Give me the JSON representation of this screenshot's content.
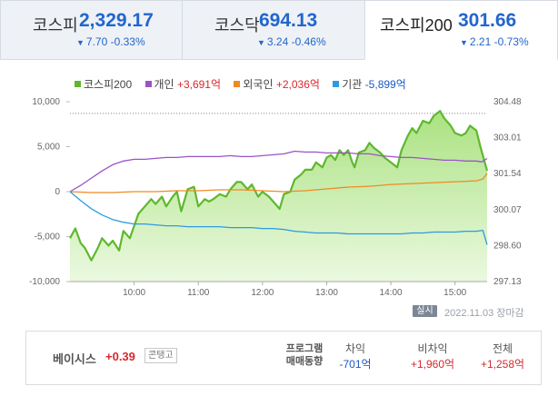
{
  "tabs": [
    {
      "name": "코스피",
      "value": "2,329.17",
      "change": "7.70",
      "rate": "-0.33%",
      "active": false
    },
    {
      "name": "코스닥",
      "value": "694.13",
      "change": "3.24",
      "rate": "-0.46%",
      "active": false
    },
    {
      "name": "코스피200",
      "value": "301.66",
      "change": "2.21",
      "rate": "-0.73%",
      "active": true
    }
  ],
  "legend": [
    {
      "name": "코스피200",
      "value": "",
      "color": "#5eb82e"
    },
    {
      "name": "개인",
      "value": "+3,691억",
      "color": "#9a53c8"
    },
    {
      "name": "외국인",
      "value": "+2,036억",
      "color": "#f08a24"
    },
    {
      "name": "기관",
      "value": "-5,899억",
      "color": "#2e9ae0"
    }
  ],
  "chart_data": {
    "type": "line",
    "x_ticks": [
      "10:00",
      "11:00",
      "12:00",
      "13:00",
      "14:00",
      "15:00"
    ],
    "x_range": [
      "09:00",
      "15:30"
    ],
    "y_left": {
      "ticks": [
        "10,000",
        "5,000",
        "0",
        "-5,000",
        "-10,000"
      ],
      "range": [
        -10000,
        10000
      ]
    },
    "y_right": {
      "ticks": [
        "304.48",
        "303.01",
        "301.54",
        "300.07",
        "298.60",
        "297.13"
      ],
      "range": [
        297.13,
        304.48
      ]
    },
    "reference_line_right": 304.0,
    "series": [
      {
        "name": "코스피200",
        "axis": "right",
        "style": "area",
        "color": "#5eb82e",
        "x": [
          0,
          5,
          10,
          14,
          20,
          26,
          30,
          36,
          40,
          46,
          50,
          56,
          60,
          64,
          70,
          76,
          80,
          86,
          90,
          96,
          100,
          104,
          110,
          116,
          120,
          126,
          130,
          134,
          140,
          146,
          150,
          156,
          160,
          166,
          170,
          176,
          180,
          186,
          190,
          196,
          200,
          206,
          210,
          216,
          220,
          226,
          230,
          236,
          240,
          244,
          248,
          252,
          256,
          260,
          264,
          266,
          270,
          276,
          280,
          284,
          290,
          294,
          300,
          306,
          310,
          316,
          320,
          324,
          330,
          336,
          340,
          346,
          350,
          356,
          360,
          366,
          370,
          374,
          380,
          384,
          390
        ],
        "y": [
          298.9,
          299.3,
          298.7,
          298.5,
          298.0,
          298.5,
          298.9,
          298.6,
          298.8,
          298.4,
          299.2,
          298.9,
          299.4,
          299.9,
          300.2,
          300.5,
          300.3,
          300.6,
          300.2,
          300.6,
          300.8,
          300.0,
          300.9,
          301.0,
          300.2,
          300.5,
          300.4,
          300.5,
          300.7,
          300.6,
          300.9,
          301.2,
          301.2,
          300.9,
          301.1,
          300.6,
          300.8,
          300.6,
          300.4,
          300.1,
          300.7,
          300.8,
          301.3,
          301.5,
          301.7,
          301.7,
          302.0,
          301.8,
          302.2,
          302.3,
          302.1,
          302.5,
          302.3,
          302.5,
          302.0,
          301.8,
          302.4,
          302.5,
          302.8,
          302.6,
          302.4,
          302.2,
          302.0,
          301.8,
          302.5,
          303.1,
          303.4,
          303.2,
          303.7,
          303.6,
          303.9,
          304.1,
          303.8,
          303.5,
          303.2,
          303.1,
          303.2,
          303.5,
          303.3,
          302.6,
          301.66
        ]
      },
      {
        "name": "개인",
        "axis": "left",
        "style": "line",
        "color": "#9a53c8",
        "x": [
          0,
          10,
          20,
          30,
          40,
          50,
          60,
          70,
          80,
          90,
          100,
          110,
          120,
          130,
          140,
          150,
          160,
          170,
          180,
          190,
          200,
          210,
          220,
          230,
          240,
          250,
          260,
          270,
          280,
          290,
          300,
          310,
          320,
          330,
          340,
          350,
          360,
          370,
          380,
          385,
          390
        ],
        "y": [
          0,
          700,
          1500,
          2300,
          3000,
          3400,
          3600,
          3600,
          3700,
          3800,
          3800,
          3900,
          3900,
          3900,
          3900,
          4000,
          3900,
          3900,
          4000,
          4100,
          4200,
          4500,
          4400,
          4400,
          4300,
          4300,
          4300,
          4200,
          4200,
          4000,
          3900,
          3800,
          3800,
          3700,
          3600,
          3500,
          3500,
          3400,
          3400,
          3300,
          3691
        ]
      },
      {
        "name": "외국인",
        "axis": "left",
        "style": "line",
        "color": "#f08a24",
        "x": [
          0,
          20,
          40,
          60,
          80,
          100,
          120,
          140,
          160,
          180,
          200,
          220,
          240,
          260,
          280,
          300,
          320,
          340,
          360,
          380,
          386,
          390
        ],
        "y": [
          0,
          -100,
          -100,
          0,
          0,
          100,
          100,
          200,
          200,
          100,
          0,
          100,
          300,
          500,
          600,
          800,
          900,
          1000,
          1100,
          1200,
          1400,
          2036
        ]
      },
      {
        "name": "기관",
        "axis": "left",
        "style": "line",
        "color": "#2e9ae0",
        "x": [
          0,
          10,
          20,
          30,
          40,
          50,
          60,
          70,
          80,
          90,
          100,
          110,
          120,
          130,
          140,
          150,
          160,
          170,
          180,
          190,
          200,
          210,
          220,
          230,
          240,
          250,
          260,
          270,
          280,
          290,
          300,
          310,
          320,
          330,
          340,
          350,
          360,
          370,
          380,
          386,
          390
        ],
        "y": [
          0,
          -1000,
          -1900,
          -2600,
          -3100,
          -3400,
          -3600,
          -3600,
          -3700,
          -3800,
          -3800,
          -3900,
          -3900,
          -3900,
          -3900,
          -4000,
          -4000,
          -4000,
          -4100,
          -4100,
          -4200,
          -4400,
          -4500,
          -4600,
          -4600,
          -4600,
          -4700,
          -4700,
          -4700,
          -4700,
          -4700,
          -4700,
          -4600,
          -4600,
          -4500,
          -4500,
          -4500,
          -4400,
          -4400,
          -4300,
          -5899
        ]
      }
    ]
  },
  "realtime_label": "실시간",
  "timestamp": "2022.11.03 장마감",
  "basis": {
    "label": "베이시스",
    "value": "+0.39",
    "tag": "콘탱고"
  },
  "program": {
    "title_line1": "프로그램",
    "title_line2": "매매동향",
    "columns": [
      {
        "header": "차익",
        "value": "-701억",
        "sign": "neg"
      },
      {
        "header": "비차익",
        "value": "+1,960억",
        "sign": "pos"
      },
      {
        "header": "전체",
        "value": "+1,258억",
        "sign": "pos"
      }
    ]
  }
}
